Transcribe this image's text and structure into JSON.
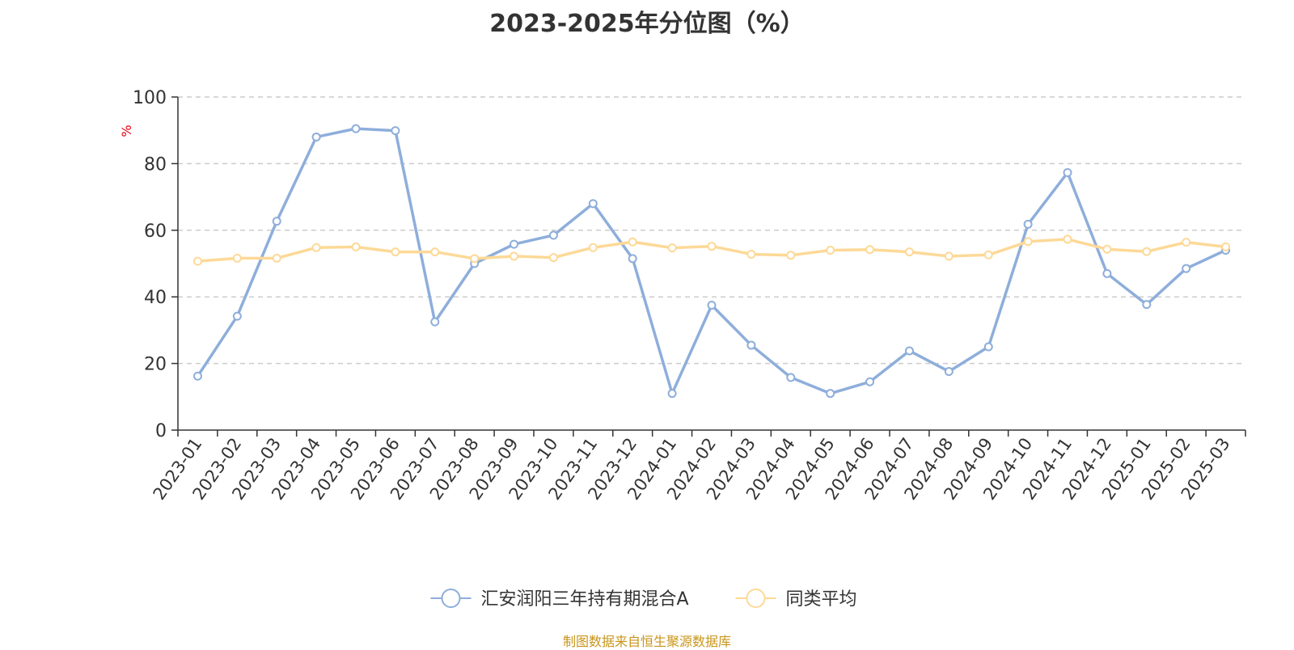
{
  "source_note": "制图数据来自恒生聚源数据库",
  "chart_data": {
    "type": "line",
    "title": "2023-2025年分位图（%）",
    "ylabel": "%",
    "ylim": [
      0,
      100
    ],
    "yticks": [
      0,
      20,
      40,
      60,
      80,
      100
    ],
    "grid": true,
    "legend_position": "bottom",
    "x": [
      "2023-01",
      "2023-02",
      "2023-03",
      "2023-04",
      "2023-05",
      "2023-06",
      "2023-07",
      "2023-08",
      "2023-09",
      "2023-10",
      "2023-11",
      "2023-12",
      "2024-01",
      "2024-02",
      "2024-03",
      "2024-04",
      "2024-05",
      "2024-06",
      "2024-07",
      "2024-08",
      "2024-09",
      "2024-10",
      "2024-11",
      "2024-12",
      "2025-01",
      "2025-02",
      "2025-03"
    ],
    "series": [
      {
        "name": "汇安润阳三年持有期混合A",
        "color": "#8eaedb",
        "values": [
          16.2,
          34.2,
          62.7,
          88.0,
          90.5,
          89.9,
          32.5,
          50.0,
          55.8,
          58.5,
          68.0,
          51.5,
          11.0,
          37.5,
          25.5,
          15.8,
          11.0,
          14.5,
          23.8,
          17.6,
          25.0,
          61.8,
          77.3,
          47.0,
          37.7,
          48.5,
          54.0
        ]
      },
      {
        "name": "同类平均",
        "color": "#fdd997",
        "values": [
          50.7,
          51.6,
          51.6,
          54.8,
          55.0,
          53.5,
          53.5,
          51.5,
          52.2,
          51.8,
          54.8,
          56.5,
          54.7,
          55.2,
          52.8,
          52.5,
          54.0,
          54.2,
          53.5,
          52.2,
          52.6,
          56.6,
          57.3,
          54.3,
          53.6,
          56.4,
          55.0
        ]
      }
    ]
  }
}
